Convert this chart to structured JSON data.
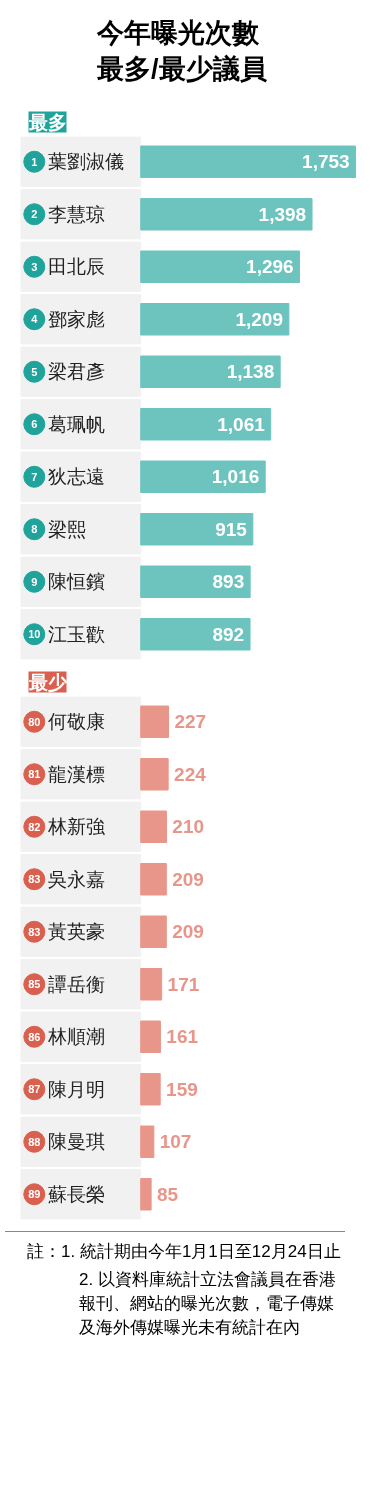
{
  "chart_data": [
    {
      "type": "bar",
      "orientation": "horizontal",
      "title": "今年曝光次數最多/最少議員",
      "subtitle": "最多",
      "categories": [
        "1 葉劉淑儀",
        "2 李慧琼",
        "3 田北辰",
        "4 鄧家彪",
        "5 梁君彥",
        "6 葛珮帆",
        "7 狄志遠",
        "8 梁熙",
        "9 陳恒鑌",
        "10 江玉歡"
      ],
      "values": [
        1753,
        1398,
        1296,
        1209,
        1138,
        1061,
        1016,
        915,
        893,
        892
      ],
      "color": "#6dc4bf",
      "value_labels": [
        "1,753",
        "1,398",
        "1,296",
        "1,209",
        "1,138",
        "1,061",
        "1,016",
        "915",
        "893",
        "892"
      ]
    },
    {
      "type": "bar",
      "orientation": "horizontal",
      "title": "最少",
      "categories": [
        "80 何敬康",
        "81 龍漢標",
        "82 林新強",
        "83 吳永嘉",
        "83 黃英豪",
        "85 譚岳衡",
        "86 林順潮",
        "87 陳月明",
        "88 陳曼琪",
        "89 蘇長榮"
      ],
      "values": [
        227,
        224,
        210,
        209,
        209,
        171,
        161,
        159,
        107,
        85
      ],
      "color": "#e8968a",
      "data_labels": true,
      "annotations": [
        "註：1. 統計期由今年1月1日至12月24日止",
        "2. 以資料庫統計立法會議員在香港報刊、網站的曝光次數，電子傳媒及海外傳媒曝光未有統計在內"
      ]
    }
  ]
}
